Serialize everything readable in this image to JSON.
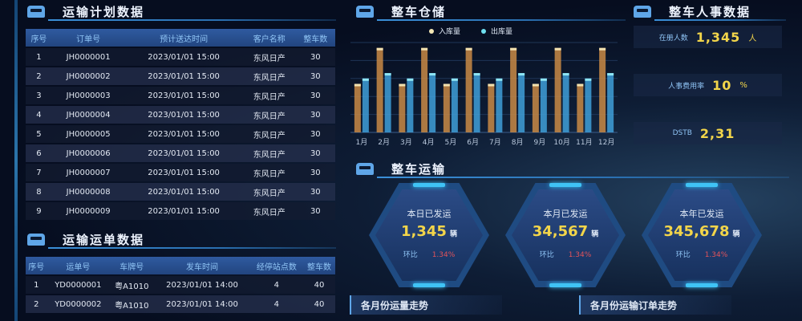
{
  "plan": {
    "title": "运输计划数据",
    "columns": [
      "序号",
      "订单号",
      "预计送达时间",
      "客户名称",
      "整车数"
    ],
    "rows": [
      [
        "1",
        "JH0000001",
        "2023/01/01 15:00",
        "东风日产",
        "30"
      ],
      [
        "2",
        "JH0000002",
        "2023/01/01 15:00",
        "东风日产",
        "30"
      ],
      [
        "3",
        "JH0000003",
        "2023/01/01 15:00",
        "东风日产",
        "30"
      ],
      [
        "4",
        "JH0000004",
        "2023/01/01 15:00",
        "东风日产",
        "30"
      ],
      [
        "5",
        "JH0000005",
        "2023/01/01 15:00",
        "东风日产",
        "30"
      ],
      [
        "6",
        "JH0000006",
        "2023/01/01 15:00",
        "东风日产",
        "30"
      ],
      [
        "7",
        "JH0000007",
        "2023/01/01 15:00",
        "东风日产",
        "30"
      ],
      [
        "8",
        "JH0000008",
        "2023/01/01 15:00",
        "东风日产",
        "30"
      ],
      [
        "9",
        "JH0000009",
        "2023/01/01 15:00",
        "东风日产",
        "30"
      ]
    ]
  },
  "waybill": {
    "title": "运输运单数据",
    "columns": [
      "序号",
      "运单号",
      "车牌号",
      "发车时间",
      "经停站点数",
      "整车数"
    ],
    "rows": [
      [
        "1",
        "YD0000001",
        "粤A1010",
        "2023/01/01 14:00",
        "4",
        "40"
      ],
      [
        "2",
        "YD0000002",
        "粤A1010",
        "2023/01/01 14:00",
        "4",
        "40"
      ]
    ]
  },
  "warehouse": {
    "title": "整车仓储"
  },
  "chart_data": {
    "type": "bar",
    "categories": [
      "1月",
      "2月",
      "3月",
      "4月",
      "5月",
      "6月",
      "7月",
      "8月",
      "9月",
      "10月",
      "11月",
      "12月"
    ],
    "series": [
      {
        "name": "入库量",
        "color": "#c98a45",
        "values": [
          2.7,
          4.7,
          2.7,
          4.7,
          2.7,
          4.7,
          2.7,
          4.7,
          2.7,
          4.7,
          2.7,
          4.7
        ]
      },
      {
        "name": "出库量",
        "color": "#3f9fd8",
        "values": [
          3.0,
          3.3,
          3.0,
          3.3,
          3.0,
          3.3,
          3.0,
          3.3,
          3.0,
          3.3,
          3.0,
          3.3
        ]
      }
    ],
    "ylim": [
      0,
      5
    ],
    "grid": true,
    "legend": "top"
  },
  "hr": {
    "title": "整车人事数据",
    "stats": [
      {
        "label": "在册人数",
        "value": "1,345",
        "unit": "人"
      },
      {
        "label": "人事费用率",
        "value": "10",
        "unit": "%"
      },
      {
        "label": "DSTB",
        "value": "2,31",
        "unit": ""
      }
    ]
  },
  "transport": {
    "title": "整车运输",
    "cards": [
      {
        "label": "本日已发运",
        "value": "1,345",
        "unit": "辆",
        "cmp_label": "环比",
        "cmp": "1.34%"
      },
      {
        "label": "本月已发运",
        "value": "34,567",
        "unit": "辆",
        "cmp_label": "环比",
        "cmp": "1.34%"
      },
      {
        "label": "本年已发运",
        "value": "345,678",
        "unit": "辆",
        "cmp_label": "环比",
        "cmp": "1.34%"
      }
    ]
  },
  "sub_sections": [
    "各月份运量走势",
    "各月份运输订单走势"
  ]
}
